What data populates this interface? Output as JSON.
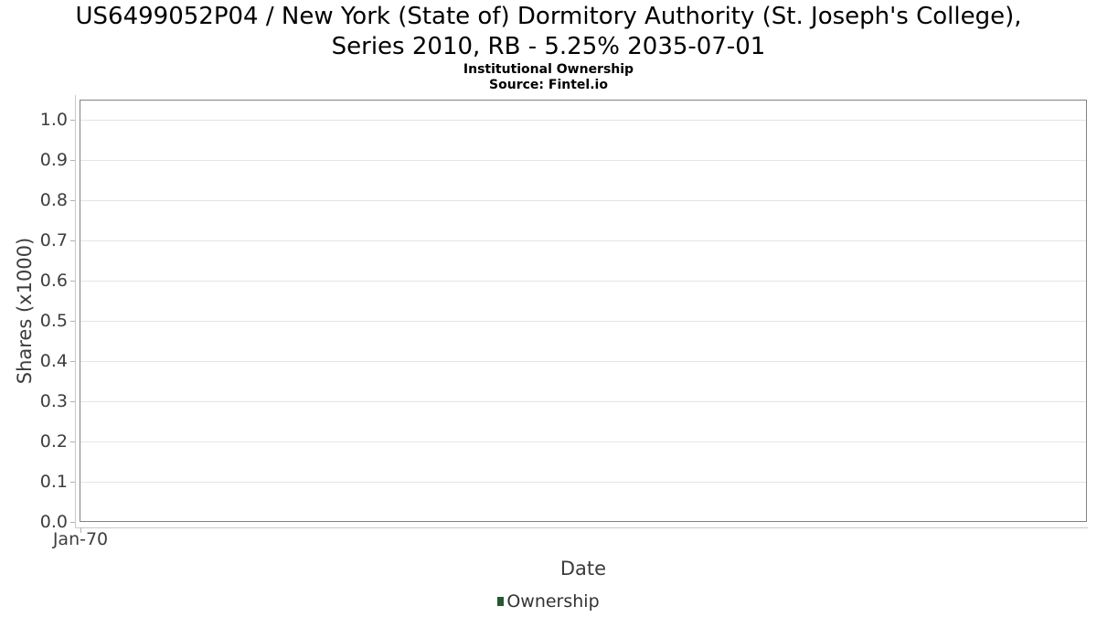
{
  "chart_data": {
    "type": "line",
    "title": "US6499052P04 / New York (State of) Dormitory Authority (St. Joseph's College),\nSeries 2010, RB - 5.25% 2035-07-01",
    "subtitle": "Institutional Ownership",
    "source": "Source: Fintel.io",
    "xlabel": "Date",
    "ylabel": "Shares (x1000)",
    "x_ticks": [
      "Jan-70"
    ],
    "y_ticks": [
      "1.0",
      "0.9",
      "0.8",
      "0.7",
      "0.6",
      "0.5",
      "0.4",
      "0.3",
      "0.2",
      "0.1",
      "0.0"
    ],
    "ylim": [
      0.0,
      1.05
    ],
    "grid": true,
    "legend": {
      "position": "bottom",
      "entries": [
        {
          "label": "Ownership",
          "marker_color": "#26592f"
        }
      ]
    },
    "series": [
      {
        "name": "Ownership",
        "x": [],
        "values": []
      }
    ]
  },
  "colors": {
    "plot_border": "#828282",
    "gridline": "#e4e4e4",
    "axis_spine": "#c9c9c9",
    "tick_label": "#3e3e3e",
    "legend_marker": "#26592f"
  }
}
